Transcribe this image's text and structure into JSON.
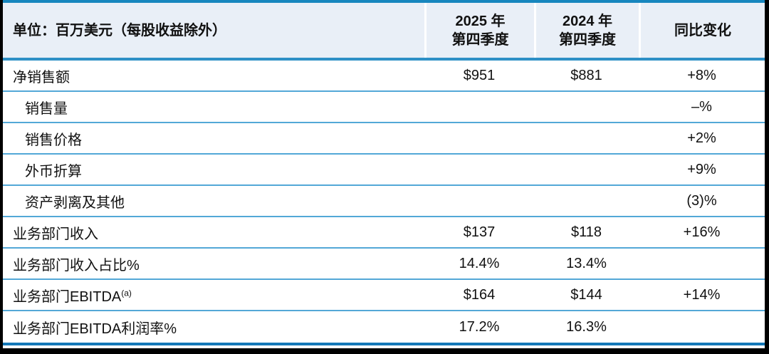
{
  "colors": {
    "frame": "#000000",
    "header_bg": "#e9eff7",
    "top_border": "#1786be",
    "header_bottom_border": "#2e90c6",
    "row_separator": "#53a8d7",
    "bottom_bar": "#1478b8",
    "column_separator": "#ffffff",
    "text": "#111111",
    "body_bg": "#ffffff"
  },
  "table": {
    "unit_label": "单位：百万美元（每股收益除外）",
    "col_2025": {
      "line1": "2025 年",
      "line2": "第四季度"
    },
    "col_2024": {
      "line1": "2024 年",
      "line2": "第四季度"
    },
    "change_label": "同比变化",
    "rows": [
      {
        "label": "净销售额",
        "sup": "",
        "indent": false,
        "v2025": "$951",
        "v2024": "$881",
        "change": "+8%"
      },
      {
        "label": "销售量",
        "sup": "",
        "indent": true,
        "v2025": "",
        "v2024": "",
        "change": "–%"
      },
      {
        "label": "销售价格",
        "sup": "",
        "indent": true,
        "v2025": "",
        "v2024": "",
        "change": "+2%"
      },
      {
        "label": "外币折算",
        "sup": "",
        "indent": true,
        "v2025": "",
        "v2024": "",
        "change": "+9%"
      },
      {
        "label": "资产剥离及其他",
        "sup": "",
        "indent": true,
        "v2025": "",
        "v2024": "",
        "change": "(3)%"
      },
      {
        "label": "业务部门收入",
        "sup": "",
        "indent": false,
        "v2025": "$137",
        "v2024": "$118",
        "change": "+16%"
      },
      {
        "label": "业务部门收入占比%",
        "sup": "",
        "indent": false,
        "v2025": "14.4%",
        "v2024": "13.4%",
        "change": ""
      },
      {
        "label": "业务部门EBITDA",
        "sup": "(a)",
        "indent": false,
        "v2025": "$164",
        "v2024": "$144",
        "change": "+14%"
      },
      {
        "label": "业务部门EBITDA利润率%",
        "sup": "",
        "indent": false,
        "v2025": "17.2%",
        "v2024": "16.3%",
        "change": ""
      }
    ]
  }
}
